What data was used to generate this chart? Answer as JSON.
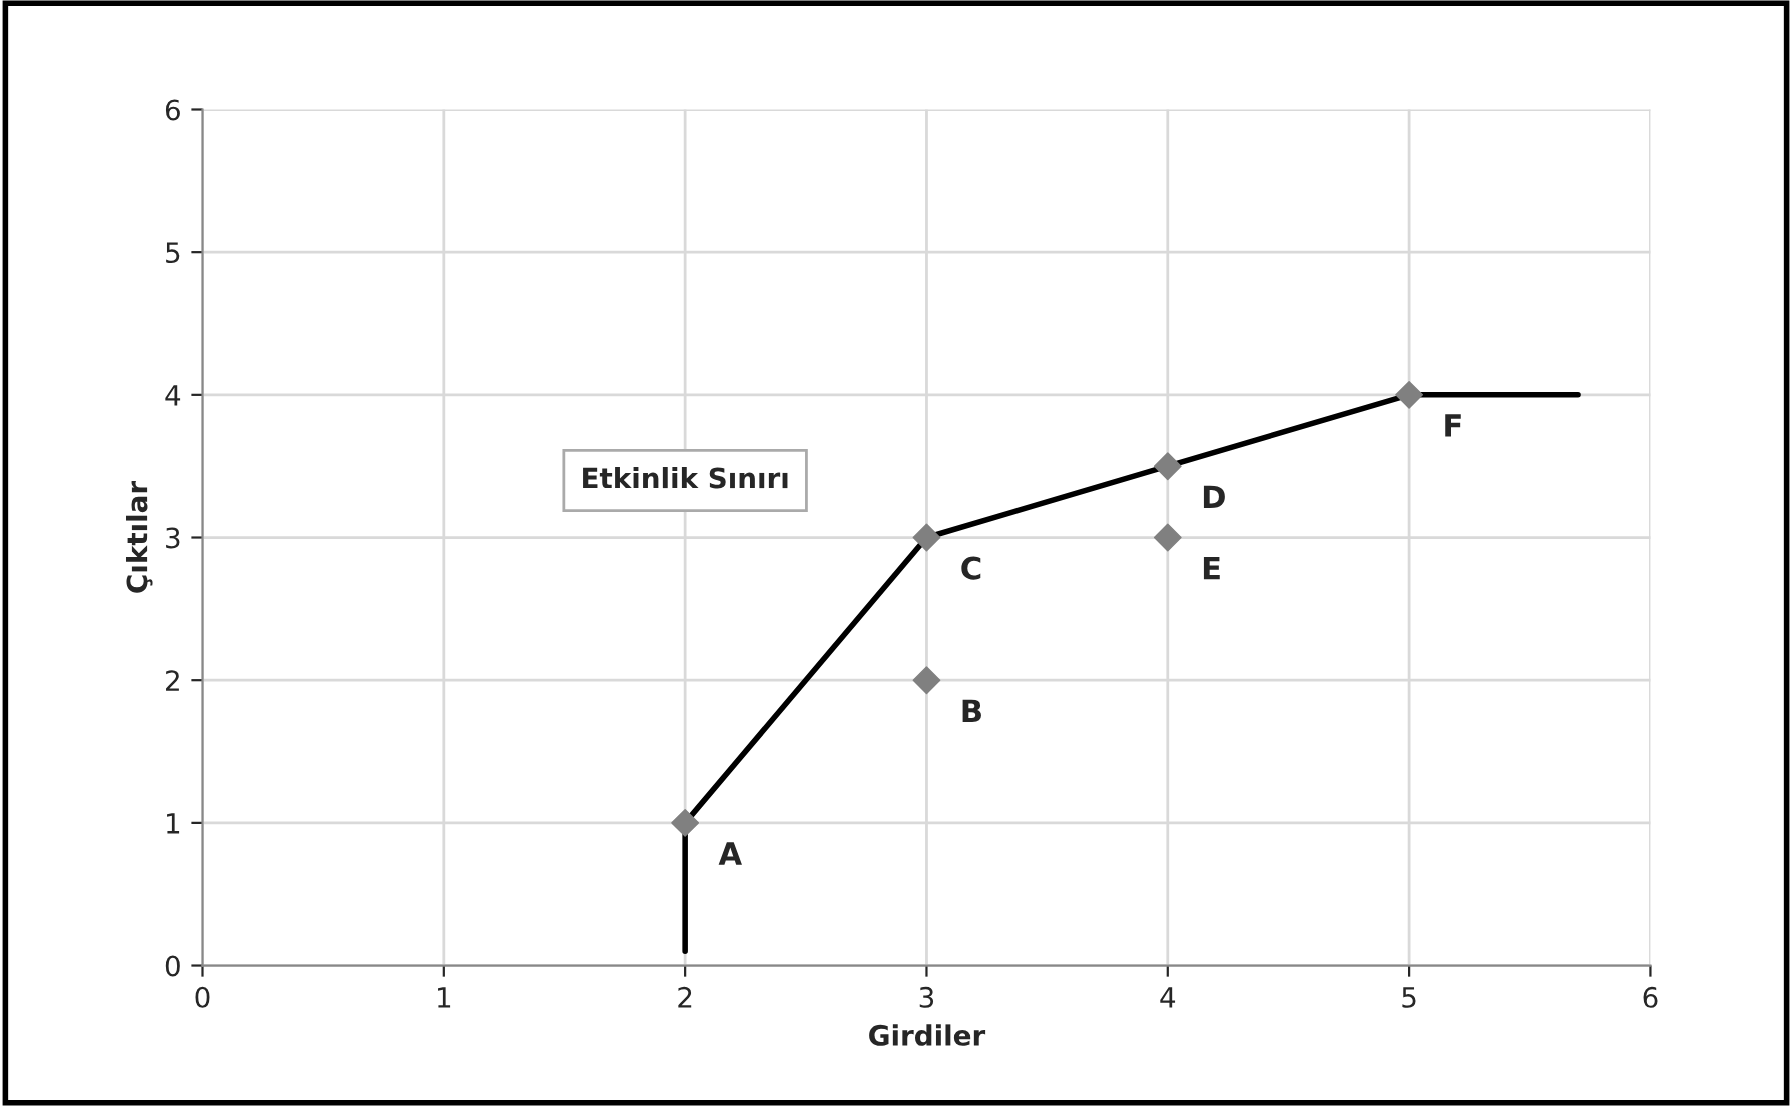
{
  "chart_data": {
    "type": "scatter",
    "xlabel": "Girdiler",
    "ylabel": "Çıktılar",
    "xlim": [
      0,
      6
    ],
    "ylim": [
      0,
      6
    ],
    "xticks": [
      0,
      1,
      2,
      3,
      4,
      5,
      6
    ],
    "yticks": [
      0,
      1,
      2,
      3,
      4,
      5,
      6
    ],
    "grid": true,
    "series": [
      {
        "type": "line",
        "color": "#000000",
        "x": [
          2,
          2,
          3,
          4,
          5,
          5.7
        ],
        "values": [
          0.1,
          1,
          3,
          3.5,
          4,
          4
        ],
        "marker": "none"
      },
      {
        "color": "#808080",
        "x": [
          2,
          3,
          3,
          4,
          4,
          5
        ],
        "values": [
          1,
          2,
          3,
          3.5,
          3,
          4
        ],
        "marker": "diamond"
      }
    ],
    "annotations": [
      "Etkinlik Sınırı",
      {
        "text": "A",
        "x": 2,
        "y": 1
      },
      {
        "text": "B",
        "x": 3,
        "y": 2
      },
      {
        "text": "C",
        "x": 3,
        "y": 3
      },
      {
        "text": "D",
        "x": 4,
        "y": 3.5
      },
      {
        "text": "E",
        "x": 4,
        "y": 3
      },
      {
        "text": "F",
        "x": 5,
        "y": 4
      }
    ]
  }
}
